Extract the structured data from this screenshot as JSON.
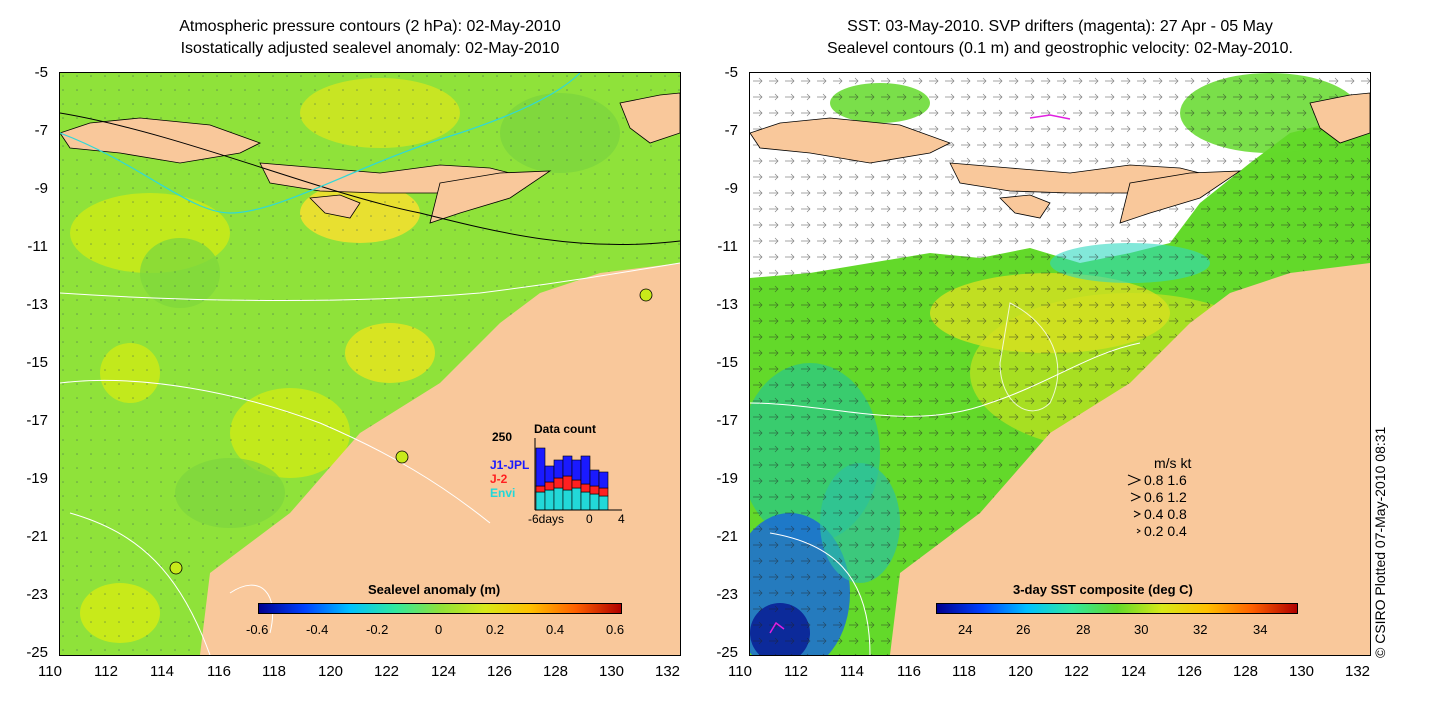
{
  "left_panel": {
    "title_line1": "Atmospheric pressure contours (2 hPa): 02-May-2010",
    "title_line2": "Isostatically adjusted sealevel anomaly: 02-May-2010",
    "colorbar": {
      "label": "Sealevel anomaly (m)",
      "ticks": [
        "-0.6",
        "-0.4",
        "-0.2",
        "0",
        "0.2",
        "0.4",
        "0.6"
      ]
    },
    "inset": {
      "title": "Data count",
      "ymax": "250",
      "series": [
        "J1-JPL",
        "J-2",
        "Envi"
      ],
      "series_colors": [
        "#1a1aff",
        "#ff2020",
        "#22d8d8"
      ],
      "x_ticks": [
        "-6days",
        "0",
        "4"
      ]
    }
  },
  "right_panel": {
    "title_line1": "SST: 03-May-2010. SVP drifters (magenta): 27 Apr - 05 May",
    "title_line2": "Sealevel contours (0.1 m) and geostrophic velocity: 02-May-2010.",
    "colorbar": {
      "label": "3-day SST composite (deg C)",
      "ticks": [
        "24",
        "26",
        "28",
        "30",
        "32",
        "34"
      ]
    },
    "velocity_legend": {
      "header": "m/s  kt",
      "rows": [
        "0.8  1.6",
        "0.6  1.2",
        "0.4  0.8",
        "0.2  0.4"
      ]
    }
  },
  "axes": {
    "x_ticks": [
      "110",
      "112",
      "114",
      "116",
      "118",
      "120",
      "122",
      "124",
      "126",
      "128",
      "130",
      "132"
    ],
    "y_ticks": [
      "-5",
      "-7",
      "-9",
      "-11",
      "-13",
      "-15",
      "-17",
      "-19",
      "-21",
      "-23",
      "-25"
    ]
  },
  "credit": "© CSIRO Plotted 07-May-2010 08:31",
  "colors": {
    "land": "#f9c89b",
    "sea_anomaly": "#8fe23a",
    "sst_mid": "#63d92a",
    "cloud": "#ffffff"
  }
}
